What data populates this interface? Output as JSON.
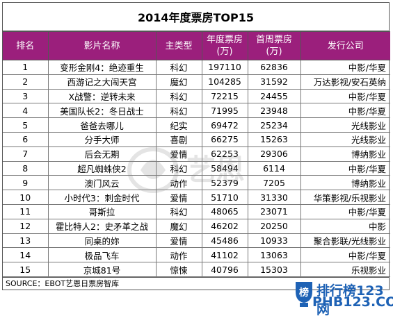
{
  "title": "2014年度票房TOP15",
  "headers": {
    "rank": "排名",
    "name": "影片名称",
    "genre": "主类型",
    "annual": "年度票房(万)",
    "opening": "首周票房(万)",
    "company": "发行公司"
  },
  "rows": [
    {
      "rank": "1",
      "name": "变形金刚4：绝迹重生",
      "genre": "科幻",
      "annual": "197110",
      "opening": "62836",
      "company": "中影/华夏"
    },
    {
      "rank": "2",
      "name": "西游记之大闹天宫",
      "genre": "魔幻",
      "annual": "104285",
      "opening": "31592",
      "company": "万达影视/安石英纳"
    },
    {
      "rank": "3",
      "name": "X战警：逆转未来",
      "genre": "科幻",
      "annual": "72215",
      "opening": "24455",
      "company": "中影/华夏"
    },
    {
      "rank": "4",
      "name": "美国队长2：冬日战士",
      "genre": "科幻",
      "annual": "71995",
      "opening": "23948",
      "company": "中影/华夏"
    },
    {
      "rank": "5",
      "name": "爸爸去哪儿",
      "genre": "纪实",
      "annual": "69472",
      "opening": "25234",
      "company": "光线影业"
    },
    {
      "rank": "6",
      "name": "分手大师",
      "genre": "喜剧",
      "annual": "66275",
      "opening": "15263",
      "company": "光线影业"
    },
    {
      "rank": "7",
      "name": "后会无期",
      "genre": "爱情",
      "annual": "62253",
      "opening": "29306",
      "company": "博纳影业"
    },
    {
      "rank": "8",
      "name": "超凡蜘蛛侠2",
      "genre": "科幻",
      "annual": "58494",
      "opening": "6114",
      "company": "中影/华夏"
    },
    {
      "rank": "9",
      "name": "澳门风云",
      "genre": "动作",
      "annual": "52379",
      "opening": "7205",
      "company": "博纳影业"
    },
    {
      "rank": "10",
      "name": "小时代3：刺金时代",
      "genre": "爱情",
      "annual": "51710",
      "opening": "31330",
      "company": "华策影视/乐视影业"
    },
    {
      "rank": "11",
      "name": "哥斯拉",
      "genre": "科幻",
      "annual": "48065",
      "opening": "23071",
      "company": "中影/华夏"
    },
    {
      "rank": "12",
      "name": "霍比特人2：史矛革之战",
      "genre": "魔幻",
      "annual": "46202",
      "opening": "20250",
      "company": "中影"
    },
    {
      "rank": "13",
      "name": "同桌的妳",
      "genre": "爱情",
      "annual": "45486",
      "opening": "10933",
      "company": "聚合影联/光线影业"
    },
    {
      "rank": "14",
      "name": "极品飞车",
      "genre": "动作",
      "annual": "41102",
      "opening": "13063",
      "company": "中影/华夏"
    },
    {
      "rank": "15",
      "name": "京城81号",
      "genre": "惊悚",
      "annual": "40796",
      "opening": "15303",
      "company": "乐视影业"
    }
  ],
  "source": "SOURCE：EBOT艺恩日票房智库",
  "watermark_center": "艺恩",
  "watermark_corner": {
    "label": "排行榜123网",
    "url": "PHB123.COM",
    "badge": "榜"
  },
  "colors": {
    "header_bg": "#9b1f7c",
    "header_text": "#ffffff",
    "watermark": "#1e62b5"
  }
}
